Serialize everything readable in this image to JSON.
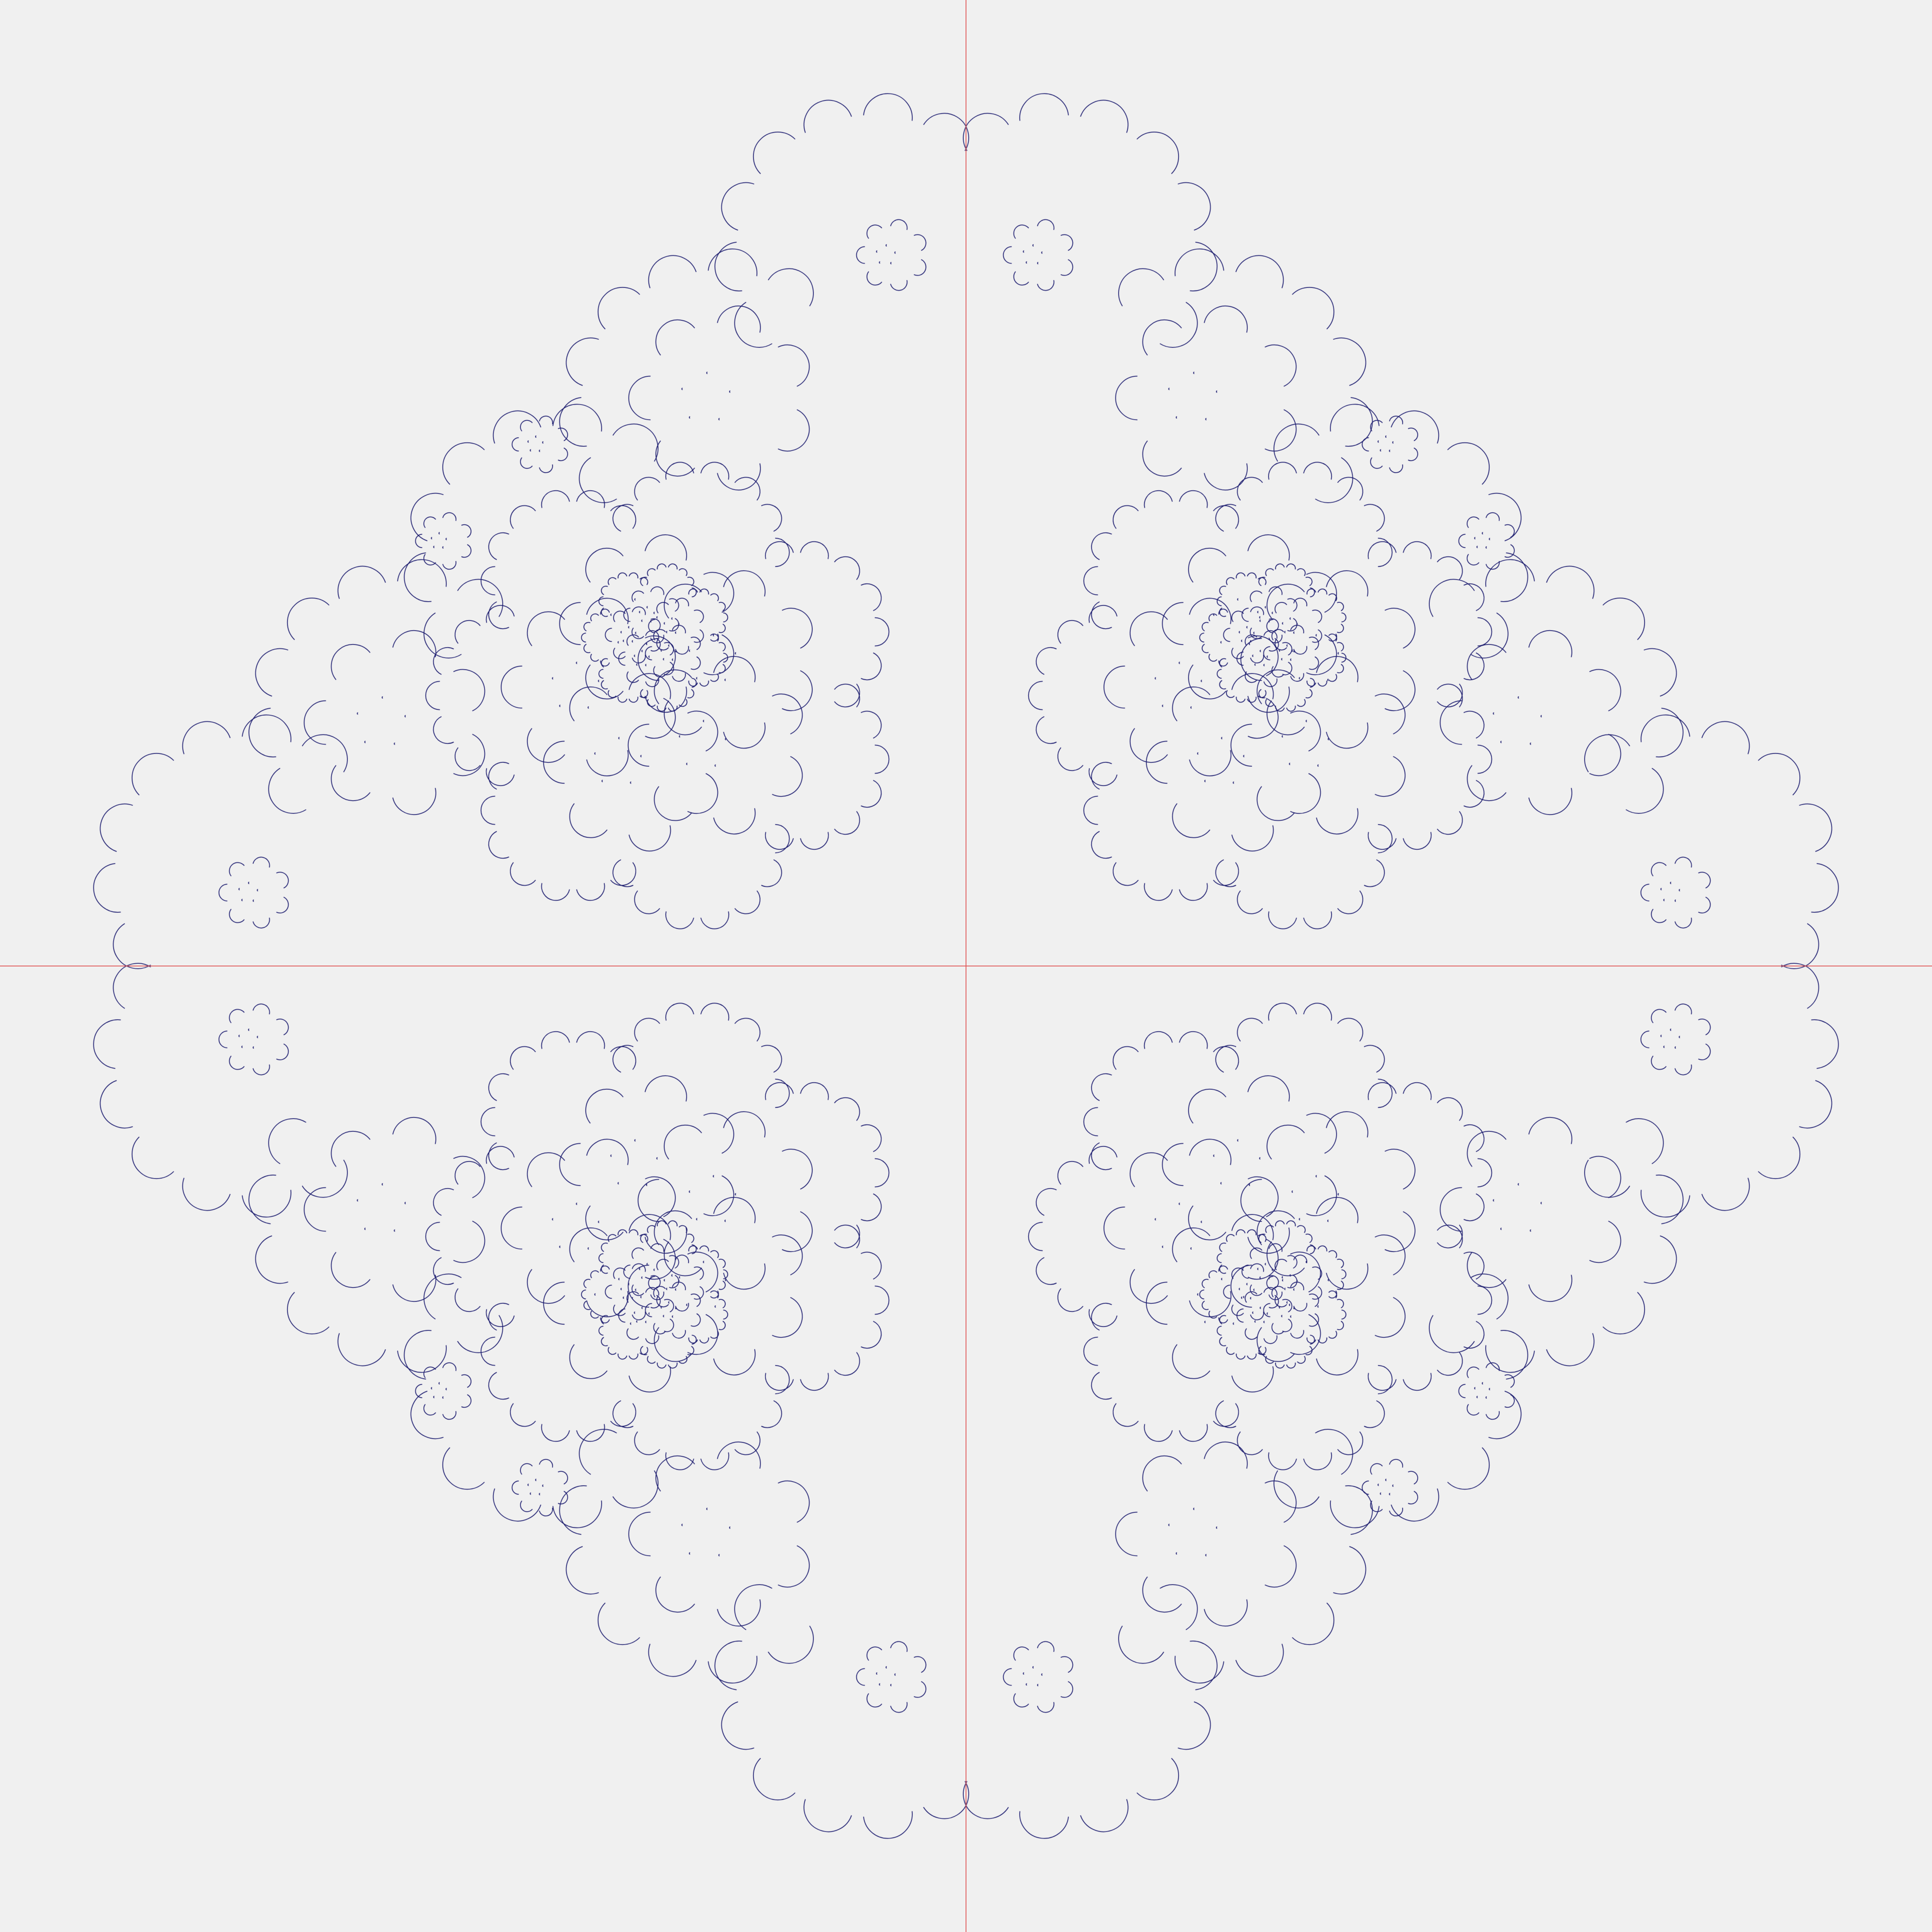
{
  "figure": {
    "background_color": "#f0f0f0",
    "curve_color": "#1a1a6e",
    "axis_color": "#e05050",
    "symmetry": "four-fold",
    "description_visible_text": ""
  }
}
